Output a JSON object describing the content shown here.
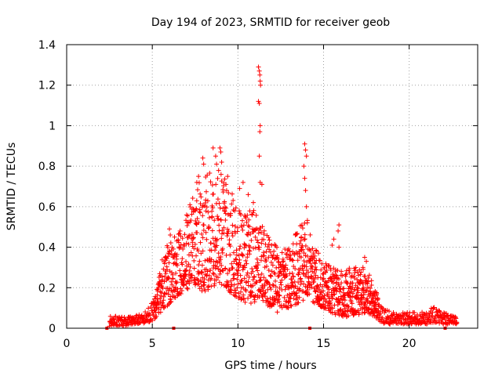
{
  "chart_data": {
    "type": "scatter",
    "title": "Day 194 of 2023, SRMTID for receiver geob",
    "xlabel": "GPS time / hours",
    "ylabel": "SRMTID / TECUs",
    "xlim": [
      0,
      24
    ],
    "ylim": [
      0,
      1.4
    ],
    "x_ticks": [
      0,
      5,
      10,
      15,
      20
    ],
    "x_tick_labels": [
      "0",
      "5",
      "10",
      "15",
      "20"
    ],
    "y_ticks": [
      0,
      0.2,
      0.4,
      0.6,
      0.8,
      1.0,
      1.2,
      1.4
    ],
    "y_tick_labels": [
      "0",
      "0.2",
      "0.4",
      "0.6",
      "0.8",
      "1",
      "1.2",
      "1.4"
    ],
    "grid": true,
    "marker": "+",
    "color": "#ff0000",
    "gap_marks_x": [
      2.35,
      6.25,
      14.2,
      22.1
    ],
    "envelope": [
      {
        "x": 2.5,
        "low": 0.01,
        "high": 0.06
      },
      {
        "x": 3.5,
        "low": 0.01,
        "high": 0.06
      },
      {
        "x": 4.0,
        "low": 0.02,
        "high": 0.07
      },
      {
        "x": 4.5,
        "low": 0.02,
        "high": 0.07
      },
      {
        "x": 4.9,
        "low": 0.03,
        "high": 0.12
      },
      {
        "x": 5.2,
        "low": 0.05,
        "high": 0.17
      },
      {
        "x": 5.5,
        "low": 0.08,
        "high": 0.32
      },
      {
        "x": 6.0,
        "low": 0.12,
        "high": 0.45
      },
      {
        "x": 6.5,
        "low": 0.16,
        "high": 0.48
      },
      {
        "x": 7.0,
        "low": 0.18,
        "high": 0.56
      },
      {
        "x": 7.5,
        "low": 0.2,
        "high": 0.7
      },
      {
        "x": 8.0,
        "low": 0.18,
        "high": 0.75
      },
      {
        "x": 8.5,
        "low": 0.2,
        "high": 0.78
      },
      {
        "x": 9.0,
        "low": 0.22,
        "high": 0.8
      },
      {
        "x": 9.5,
        "low": 0.18,
        "high": 0.7
      },
      {
        "x": 10.0,
        "low": 0.15,
        "high": 0.65
      },
      {
        "x": 10.5,
        "low": 0.12,
        "high": 0.6
      },
      {
        "x": 11.0,
        "low": 0.12,
        "high": 0.58
      },
      {
        "x": 11.5,
        "low": 0.12,
        "high": 0.5
      },
      {
        "x": 12.0,
        "low": 0.1,
        "high": 0.42
      },
      {
        "x": 12.5,
        "low": 0.1,
        "high": 0.4
      },
      {
        "x": 13.0,
        "low": 0.1,
        "high": 0.4
      },
      {
        "x": 13.5,
        "low": 0.12,
        "high": 0.5
      },
      {
        "x": 14.0,
        "low": 0.15,
        "high": 0.55
      },
      {
        "x": 14.5,
        "low": 0.12,
        "high": 0.4
      },
      {
        "x": 15.0,
        "low": 0.1,
        "high": 0.36
      },
      {
        "x": 15.5,
        "low": 0.07,
        "high": 0.3
      },
      {
        "x": 16.0,
        "low": 0.05,
        "high": 0.28
      },
      {
        "x": 16.5,
        "low": 0.06,
        "high": 0.3
      },
      {
        "x": 17.0,
        "low": 0.06,
        "high": 0.3
      },
      {
        "x": 17.5,
        "low": 0.08,
        "high": 0.3
      },
      {
        "x": 18.0,
        "low": 0.05,
        "high": 0.2
      },
      {
        "x": 18.5,
        "low": 0.02,
        "high": 0.1
      },
      {
        "x": 19.0,
        "low": 0.02,
        "high": 0.08
      },
      {
        "x": 20.0,
        "low": 0.02,
        "high": 0.08
      },
      {
        "x": 21.0,
        "low": 0.02,
        "high": 0.08
      },
      {
        "x": 21.5,
        "low": 0.03,
        "high": 0.12
      },
      {
        "x": 22.0,
        "low": 0.02,
        "high": 0.08
      },
      {
        "x": 22.5,
        "low": 0.02,
        "high": 0.06
      },
      {
        "x": 22.8,
        "low": 0.02,
        "high": 0.06
      }
    ],
    "series": [
      {
        "name": "SRMTID",
        "points": [
          [
            11.2,
            1.29
          ],
          [
            11.25,
            1.27
          ],
          [
            11.28,
            1.25
          ],
          [
            11.3,
            1.22
          ],
          [
            11.32,
            1.2
          ],
          [
            11.2,
            1.12
          ],
          [
            11.25,
            1.11
          ],
          [
            11.3,
            1.0
          ],
          [
            11.28,
            0.97
          ],
          [
            11.25,
            0.85
          ],
          [
            11.3,
            0.72
          ],
          [
            11.4,
            0.71
          ],
          [
            13.9,
            0.91
          ],
          [
            13.95,
            0.88
          ],
          [
            14.0,
            0.85
          ],
          [
            13.85,
            0.8
          ],
          [
            13.9,
            0.74
          ],
          [
            13.95,
            0.68
          ],
          [
            14.0,
            0.6
          ],
          [
            14.05,
            0.52
          ],
          [
            8.55,
            0.89
          ],
          [
            8.7,
            0.85
          ],
          [
            8.95,
            0.89
          ],
          [
            9.0,
            0.87
          ],
          [
            9.05,
            0.82
          ],
          [
            7.95,
            0.84
          ],
          [
            8.0,
            0.81
          ],
          [
            7.7,
            0.75
          ],
          [
            7.6,
            0.72
          ],
          [
            8.75,
            0.81
          ],
          [
            9.4,
            0.75
          ],
          [
            10.3,
            0.72
          ],
          [
            10.1,
            0.69
          ],
          [
            10.6,
            0.66
          ],
          [
            10.9,
            0.62
          ],
          [
            15.9,
            0.51
          ],
          [
            15.85,
            0.48
          ],
          [
            15.9,
            0.4
          ],
          [
            17.4,
            0.35
          ],
          [
            17.5,
            0.33
          ],
          [
            17.3,
            0.3
          ],
          [
            15.6,
            0.44
          ],
          [
            15.5,
            0.41
          ],
          [
            12.1,
            0.38
          ],
          [
            12.3,
            0.08
          ],
          [
            13.6,
            0.38
          ],
          [
            13.7,
            0.45
          ],
          [
            6.0,
            0.49
          ],
          [
            6.05,
            0.46
          ]
        ]
      }
    ]
  }
}
